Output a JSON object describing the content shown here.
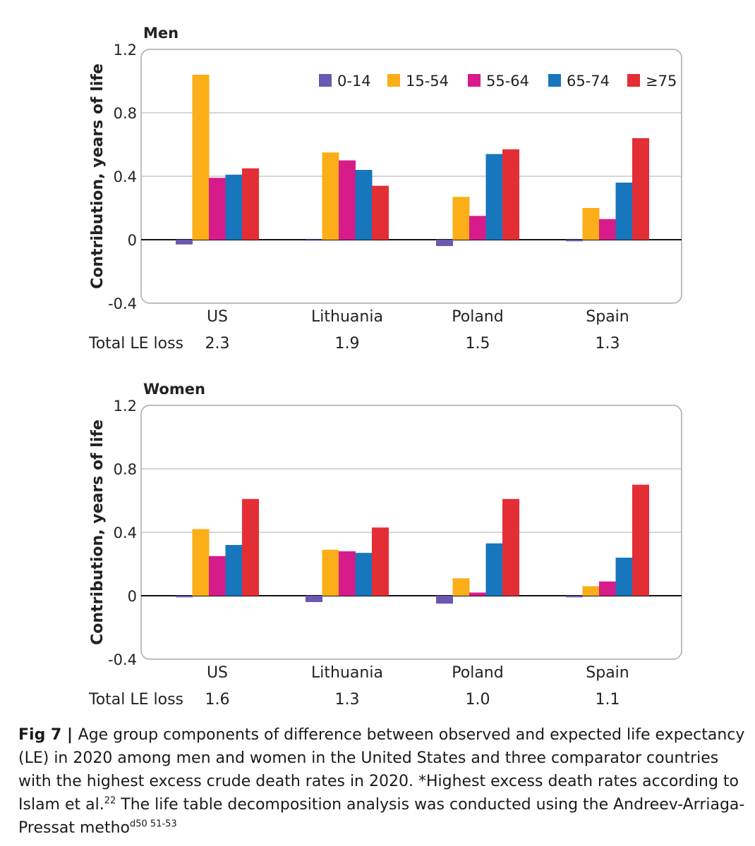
{
  "legend": [
    {
      "label": "0-14",
      "color": "#6b58b0"
    },
    {
      "label": "15-54",
      "color": "#fbae17"
    },
    {
      "label": "55-64",
      "color": "#d81b8a"
    },
    {
      "label": "65-74",
      "color": "#1776bc"
    },
    {
      "label": "≥75",
      "color": "#e42e35"
    }
  ],
  "chart_data": [
    {
      "type": "bar",
      "title": "Men",
      "ylabel": "Contribution, years of life",
      "ylim": [
        -0.4,
        1.2
      ],
      "yticks": [
        "1.2",
        "0.8",
        "0.4",
        "0",
        "-0.4"
      ],
      "grid": true,
      "legend_position": "top-right",
      "categories": [
        "US",
        "Lithuania",
        "Poland",
        "Spain"
      ],
      "series": [
        {
          "name": "0-14",
          "values": [
            -0.03,
            0.0,
            -0.04,
            -0.01
          ]
        },
        {
          "name": "15-54",
          "values": [
            1.04,
            0.55,
            0.27,
            0.2
          ]
        },
        {
          "name": "55-64",
          "values": [
            0.39,
            0.5,
            0.15,
            0.13
          ]
        },
        {
          "name": "65-74",
          "values": [
            0.41,
            0.44,
            0.54,
            0.36
          ]
        },
        {
          "name": "≥75",
          "values": [
            0.45,
            0.34,
            0.57,
            0.64
          ]
        }
      ],
      "row_label": "Total LE loss",
      "row_values": [
        "2.3",
        "1.9",
        "1.5",
        "1.3"
      ]
    },
    {
      "type": "bar",
      "title": "Women",
      "ylabel": "Contribution, years of life",
      "ylim": [
        -0.4,
        1.2
      ],
      "yticks": [
        "1.2",
        "0.8",
        "0.4",
        "0",
        "-0.4"
      ],
      "grid": true,
      "categories": [
        "US",
        "Lithuania",
        "Poland",
        "Spain"
      ],
      "series": [
        {
          "name": "0-14",
          "values": [
            -0.01,
            -0.04,
            -0.05,
            -0.01
          ]
        },
        {
          "name": "15-54",
          "values": [
            0.42,
            0.29,
            0.11,
            0.06
          ]
        },
        {
          "name": "55-64",
          "values": [
            0.25,
            0.28,
            0.02,
            0.09
          ]
        },
        {
          "name": "65-74",
          "values": [
            0.32,
            0.27,
            0.33,
            0.24
          ]
        },
        {
          "name": "≥75",
          "values": [
            0.61,
            0.43,
            0.61,
            0.7
          ]
        }
      ],
      "row_label": "Total LE loss",
      "row_values": [
        "1.6",
        "1.3",
        "1.0",
        "1.1"
      ]
    }
  ],
  "caption": {
    "lead": "Fig 7 | ",
    "text": "Age group components of difference between observed and expected life expectancy (LE) in 2020 among men and women in the United States and three comparator countries with the highest excess crude death rates in 2020. *Highest excess death rates according to Islam et al.",
    "ref": "22",
    "text2": " The life table decomposition analysis was conducted using the Andreev-Arriaga-Pressat metho",
    "ref2": "d50 51-53"
  }
}
